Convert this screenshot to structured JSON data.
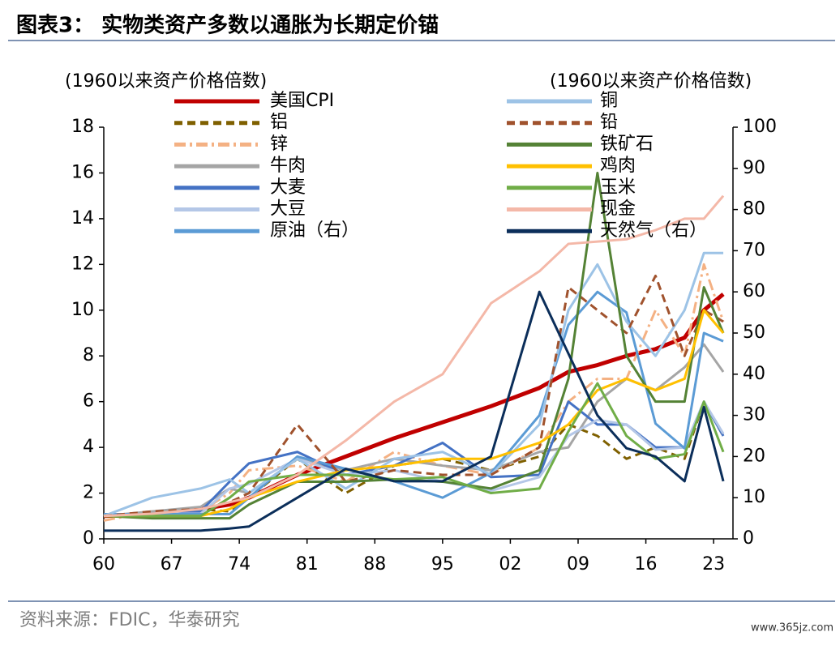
{
  "chart_data": {
    "type": "line",
    "title": "图表3：  实物类资产多数以通胀为长期定价锚",
    "y_label": "(1960以来资产价格倍数)",
    "y2_label": "(1960以来资产价格倍数)",
    "source": "资料来源：FDIC，华泰研究",
    "watermark": "www.365jz.com",
    "x": [
      1960,
      1965,
      1970,
      1973,
      1975,
      1980,
      1985,
      1990,
      1995,
      2000,
      2005,
      2008,
      2011,
      2014,
      2017,
      2020,
      2022,
      2024
    ],
    "xlim": [
      1960,
      2025
    ],
    "xticks": [
      {
        "value": 1960,
        "label": "60"
      },
      {
        "value": 1967,
        "label": "67"
      },
      {
        "value": 1974,
        "label": "74"
      },
      {
        "value": 1981,
        "label": "81"
      },
      {
        "value": 1988,
        "label": "88"
      },
      {
        "value": 1995,
        "label": "95"
      },
      {
        "value": 2002,
        "label": "02"
      },
      {
        "value": 2009,
        "label": "09"
      },
      {
        "value": 2016,
        "label": "16"
      },
      {
        "value": 2023,
        "label": "23"
      }
    ],
    "ylim": [
      0,
      18
    ],
    "yticks": [
      0,
      2,
      4,
      6,
      8,
      10,
      12,
      14,
      16,
      18
    ],
    "y2lim": [
      0,
      100
    ],
    "y2ticks": [
      0,
      10,
      20,
      30,
      40,
      50,
      60,
      70,
      80,
      90,
      100
    ],
    "series": [
      {
        "name": "美国CPI",
        "color": "#c00000",
        "width": 5,
        "values": [
          1,
          1.07,
          1.3,
          1.5,
          1.8,
          2.8,
          3.6,
          4.4,
          5.1,
          5.8,
          6.6,
          7.3,
          7.6,
          8,
          8.3,
          8.8,
          10,
          10.7
        ]
      },
      {
        "name": "铝",
        "color": "#7f6000",
        "style": "dashed",
        "values": [
          1,
          1.1,
          1.3,
          1.2,
          1.8,
          3.5,
          2,
          3.2,
          3.5,
          3,
          3.6,
          5,
          4.5,
          3.5,
          4,
          3.5,
          6,
          4.5
        ]
      },
      {
        "name": "锌",
        "color": "#f4b183",
        "style": "dashdot",
        "values": [
          0.8,
          1.2,
          1.2,
          2,
          3,
          3.2,
          2.5,
          3.8,
          3.2,
          2.8,
          4,
          6,
          7,
          7,
          10,
          8,
          12,
          9.5
        ]
      },
      {
        "name": "牛肉",
        "color": "#a5a5a5",
        "values": [
          1,
          1.2,
          1.4,
          2.2,
          2,
          3.5,
          3,
          3.5,
          3.2,
          3,
          3.8,
          4,
          6,
          7,
          6.5,
          7.5,
          8.5,
          7.3
        ]
      },
      {
        "name": "大麦",
        "color": "#4472c4",
        "values": [
          1,
          1.1,
          1.2,
          2.5,
          3.3,
          3.8,
          2.8,
          3.2,
          4.2,
          2.7,
          2.8,
          6,
          5,
          5,
          4,
          4,
          6,
          4.5
        ]
      },
      {
        "name": "大豆",
        "color": "#b4c7e7",
        "values": [
          1,
          1.1,
          1.1,
          2.2,
          2.4,
          3.5,
          2.8,
          3,
          2.5,
          2.1,
          2.7,
          4.5,
          5.2,
          5,
          3.9,
          4,
          6,
          4.6
        ]
      },
      {
        "name": "原油（右）",
        "color": "#5b9bd5",
        "axis": "y2",
        "values": [
          6,
          6,
          6,
          6,
          10,
          20,
          17,
          14,
          10,
          16,
          30,
          52,
          60,
          55,
          28,
          22,
          50,
          48
        ]
      },
      {
        "name": "铜",
        "color": "#9dc3e6",
        "values": [
          1,
          1.8,
          2.2,
          2.6,
          2,
          3.5,
          2.2,
          3.5,
          3.8,
          2.8,
          5,
          10,
          12,
          9.5,
          8,
          10,
          12.5,
          12.5
        ]
      },
      {
        "name": "铅",
        "color": "#a0522d",
        "style": "dashed",
        "values": [
          1,
          1.2,
          1.3,
          1.6,
          2,
          5,
          2.5,
          3,
          2.8,
          2.8,
          4,
          11,
          10,
          9,
          11.5,
          8,
          10,
          9.5
        ]
      },
      {
        "name": "铁矿石",
        "color": "#548235",
        "values": [
          1,
          0.9,
          0.9,
          0.9,
          1.5,
          2.5,
          2.5,
          2.6,
          2.5,
          2.2,
          3,
          7,
          16,
          8,
          6,
          6,
          11,
          9
        ]
      },
      {
        "name": "鸡肉",
        "color": "#ffc000",
        "values": [
          1,
          1,
          1,
          1.3,
          1.8,
          2.5,
          3,
          3.2,
          3.5,
          3.5,
          4.2,
          5,
          6.5,
          7,
          6.5,
          7,
          10,
          9
        ]
      },
      {
        "name": "玉米",
        "color": "#70ad47",
        "values": [
          1,
          1,
          1,
          1.8,
          2.5,
          2.8,
          2.8,
          2.6,
          2.7,
          2,
          2.2,
          4.7,
          6.8,
          4.5,
          3.5,
          3.7,
          6,
          3.8
        ]
      },
      {
        "name": "现金",
        "color": "#f4b8a8",
        "values": [
          1,
          1.1,
          1.3,
          1.6,
          1.8,
          2.8,
          4.3,
          6,
          7.2,
          10.3,
          11.7,
          12.9,
          13,
          13.1,
          13.5,
          14,
          14,
          15
        ]
      },
      {
        "name": "天然气（右）",
        "color": "#0b2e5a",
        "axis": "y2",
        "values": [
          2,
          2,
          2,
          2.5,
          3,
          10,
          17,
          14,
          14,
          20,
          60,
          45,
          30,
          22,
          20,
          14,
          32,
          14
        ]
      }
    ]
  }
}
